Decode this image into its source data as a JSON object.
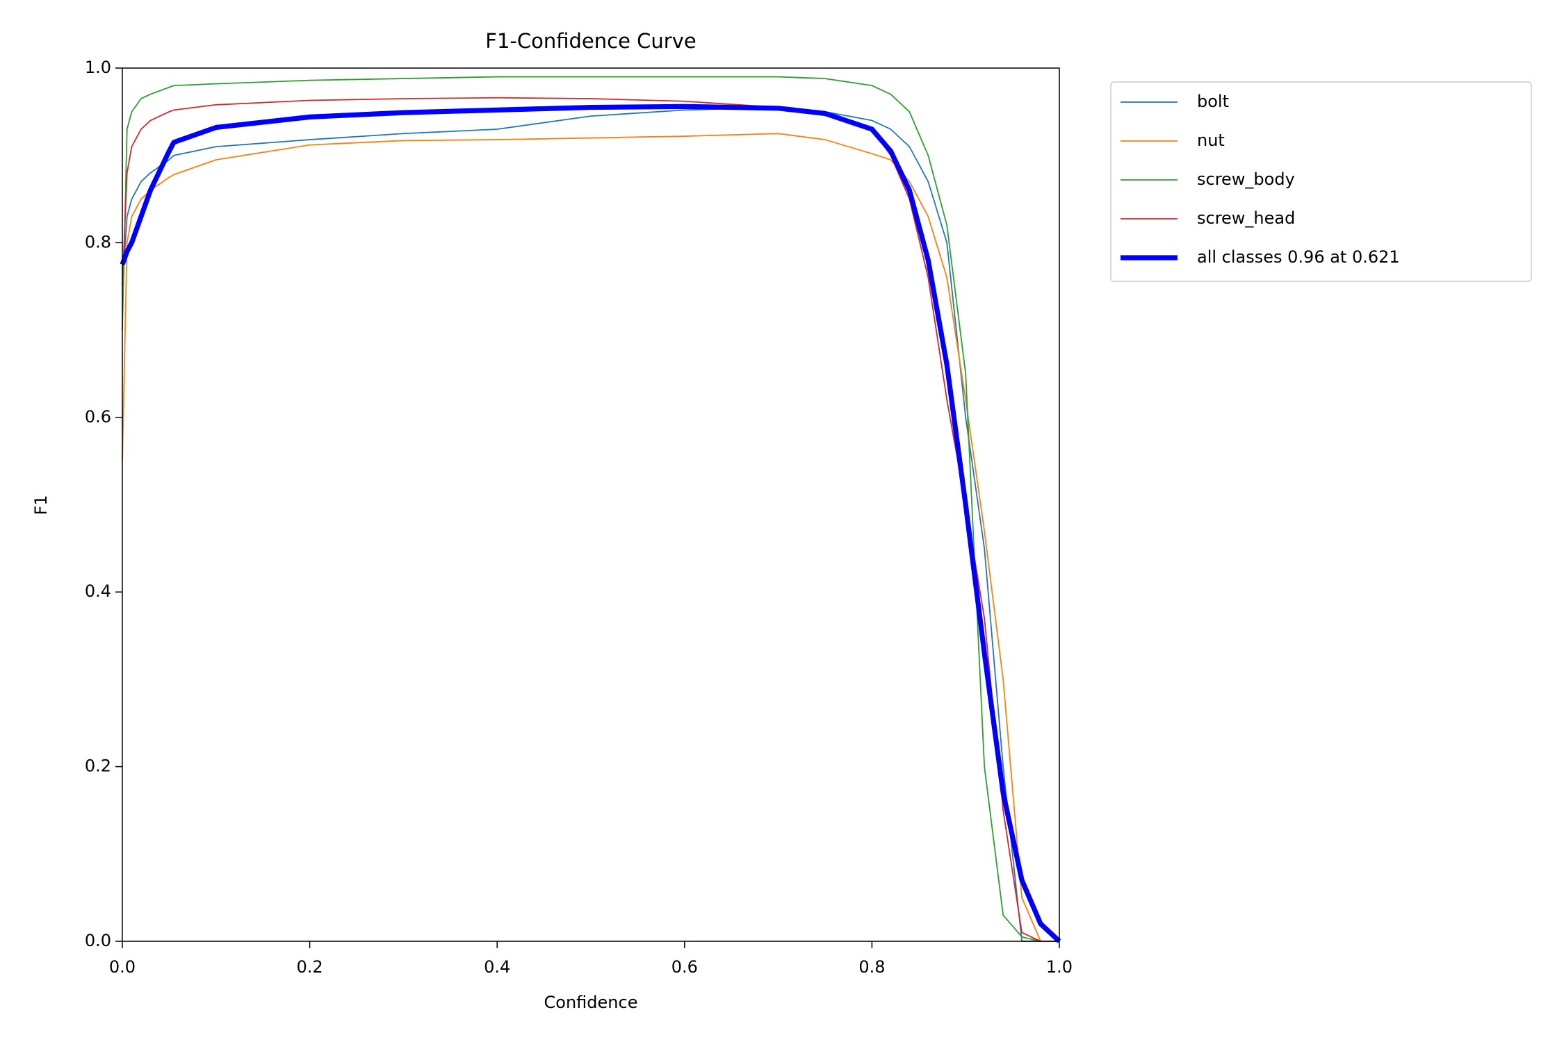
{
  "chart_data": {
    "type": "line",
    "title": "F1-Confidence Curve",
    "x_label": "Confidence",
    "y_label": "F1",
    "x": [
      0,
      0.005,
      0.01,
      0.02,
      0.03,
      0.05,
      0.055,
      0.1,
      0.2,
      0.3,
      0.4,
      0.5,
      0.6,
      0.7,
      0.75,
      0.8,
      0.82,
      0.84,
      0.86,
      0.88,
      0.9,
      0.92,
      0.94,
      0.96,
      0.98,
      1
    ],
    "series": [
      {
        "name": "bolt",
        "color": "#1f77b4",
        "linewidth": 2,
        "values": [
          0.75,
          0.83,
          0.85,
          0.87,
          0.88,
          0.895,
          0.9,
          0.91,
          0.918,
          0.925,
          0.93,
          0.945,
          0.952,
          0.955,
          0.95,
          0.94,
          0.93,
          0.91,
          0.87,
          0.8,
          0.6,
          0.45,
          0.2,
          0,
          0,
          0
        ]
      },
      {
        "name": "nut",
        "color": "#ff7f0e",
        "linewidth": 2,
        "values": [
          0.55,
          0.8,
          0.83,
          0.85,
          0.86,
          0.875,
          0.878,
          0.895,
          0.912,
          0.917,
          0.918,
          0.92,
          0.922,
          0.925,
          0.918,
          0.902,
          0.895,
          0.87,
          0.83,
          0.76,
          0.62,
          0.47,
          0.3,
          0.05,
          0,
          0
        ]
      },
      {
        "name": "screw_body",
        "color": "#2ca02c",
        "linewidth": 2,
        "values": [
          0.7,
          0.93,
          0.95,
          0.965,
          0.97,
          0.978,
          0.98,
          0.982,
          0.986,
          0.988,
          0.99,
          0.99,
          0.99,
          0.99,
          0.988,
          0.98,
          0.97,
          0.95,
          0.9,
          0.82,
          0.65,
          0.2,
          0.03,
          0.005,
          0,
          0
        ]
      },
      {
        "name": "screw_head",
        "color": "#d62728",
        "linewidth": 2,
        "values": [
          0.75,
          0.88,
          0.91,
          0.93,
          0.94,
          0.95,
          0.952,
          0.958,
          0.963,
          0.965,
          0.966,
          0.965,
          0.962,
          0.955,
          0.948,
          0.93,
          0.9,
          0.85,
          0.76,
          0.62,
          0.5,
          0.37,
          0.15,
          0.01,
          0,
          0
        ]
      },
      {
        "name": "all classes 0.96 at 0.621",
        "color": "#0000ff",
        "linewidth": 8,
        "values": [
          0.775,
          0.79,
          0.8,
          0.83,
          0.86,
          0.905,
          0.915,
          0.932,
          0.944,
          0.949,
          0.952,
          0.955,
          0.956,
          0.954,
          0.948,
          0.93,
          0.905,
          0.86,
          0.78,
          0.66,
          0.5,
          0.33,
          0.17,
          0.07,
          0.02,
          0
        ]
      }
    ],
    "xlim": [
      0,
      1
    ],
    "ylim": [
      0,
      1
    ],
    "xticks": [
      {
        "value": 0,
        "label": "0.0"
      },
      0.2,
      0.4,
      0.6,
      0.8,
      {
        "value": 1,
        "label": "1.0"
      }
    ],
    "yticks": [
      {
        "value": 0,
        "label": "0.0"
      },
      0.2,
      0.4,
      0.6,
      0.8,
      {
        "value": 1,
        "label": "1.0"
      }
    ],
    "grid": false,
    "legend": "outside upper right"
  }
}
